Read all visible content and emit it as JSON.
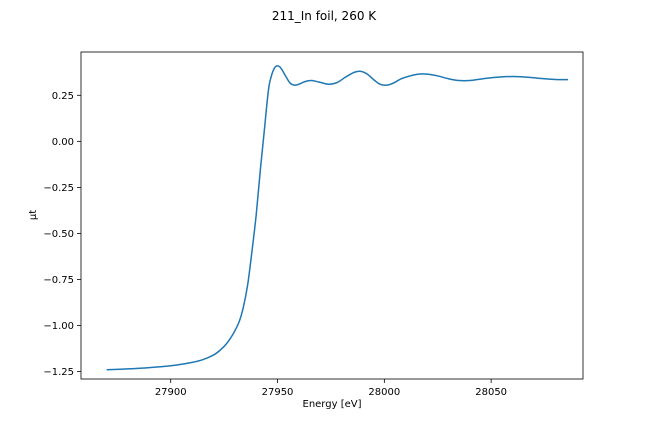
{
  "chart_data": {
    "type": "line",
    "title": "211_In foil, 260 K",
    "xlabel": "Energy [eV]",
    "ylabel": "μt",
    "xlim": [
      27858,
      28093
    ],
    "ylim": [
      -1.29,
      0.485
    ],
    "xticks": [
      27900,
      27950,
      28000,
      28050
    ],
    "xtick_labels": [
      "27900",
      "27950",
      "28000",
      "28050"
    ],
    "yticks": [
      -1.25,
      -1.0,
      -0.75,
      -0.5,
      -0.25,
      0.0,
      0.25
    ],
    "ytick_labels": [
      "−1.25",
      "−1.00",
      "−0.75",
      "−0.50",
      "−0.25",
      "0.00",
      "0.25"
    ],
    "grid": false,
    "colors": {
      "series": "#1f77b4"
    },
    "series": [
      {
        "x": [
          27870,
          27880,
          27890,
          27900,
          27905,
          27910,
          27915,
          27920,
          27923,
          27926,
          27929,
          27932,
          27934,
          27936,
          27938,
          27940,
          27942,
          27944,
          27945,
          27946,
          27947,
          27948,
          27949,
          27950,
          27951,
          27952,
          27954,
          27956,
          27958,
          27960,
          27963,
          27966,
          27970,
          27974,
          27978,
          27982,
          27986,
          27989,
          27992,
          27995,
          27998,
          28001,
          28004,
          28008,
          28012,
          28016,
          28020,
          28025,
          28030,
          28035,
          28040,
          28045,
          28050,
          28055,
          28060,
          28065,
          28070,
          28075,
          28080,
          28086
        ],
        "y": [
          -1.24,
          -1.235,
          -1.228,
          -1.218,
          -1.21,
          -1.2,
          -1.185,
          -1.16,
          -1.135,
          -1.1,
          -1.05,
          -0.98,
          -0.9,
          -0.78,
          -0.6,
          -0.4,
          -0.15,
          0.08,
          0.2,
          0.3,
          0.35,
          0.385,
          0.405,
          0.41,
          0.405,
          0.39,
          0.35,
          0.315,
          0.305,
          0.31,
          0.325,
          0.33,
          0.32,
          0.31,
          0.32,
          0.35,
          0.375,
          0.38,
          0.365,
          0.335,
          0.31,
          0.305,
          0.315,
          0.34,
          0.355,
          0.365,
          0.365,
          0.355,
          0.34,
          0.33,
          0.33,
          0.338,
          0.345,
          0.35,
          0.352,
          0.35,
          0.345,
          0.34,
          0.336,
          0.335
        ]
      }
    ]
  }
}
